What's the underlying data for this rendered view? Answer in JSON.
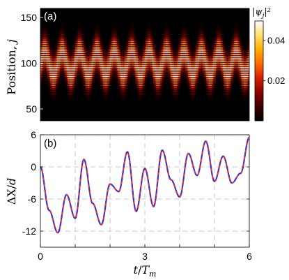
{
  "chart_data": [
    {
      "type": "heatmap",
      "panel_label": "(a)",
      "xlabel": "",
      "ylabel": "Position, j",
      "ylabel_text": "Position,",
      "ylabel_var": "j",
      "x_range": [
        0,
        6
      ],
      "y_range": [
        37,
        160
      ],
      "y_ticks": [
        "50",
        "100",
        "150"
      ],
      "y_tick_values": [
        50,
        100,
        150
      ],
      "colorbar": {
        "label": "|ψj|²",
        "label_text": "|ψ",
        "label_sub": "j",
        "label_tail": "|²",
        "ticks": [
          "0.02",
          "0.04"
        ],
        "tick_values": [
          0.02,
          0.04
        ],
        "range": [
          0,
          0.05
        ],
        "colormap": [
          "#000000",
          "#3a0000",
          "#8b0000",
          "#d42000",
          "#ff6a00",
          "#ffb000",
          "#ffe070",
          "#ffffff"
        ]
      },
      "packet": {
        "center_start": 100,
        "center_drift_per_Tm": 0,
        "oscillation_amplitude": 12,
        "oscillations_in_window": 12,
        "width": 17,
        "peak_value": 0.05
      }
    },
    {
      "type": "line",
      "panel_label": "(b)",
      "xlabel": "t/Tm",
      "xlabel_main": "t",
      "xlabel_den": "T",
      "xlabel_sub": "m",
      "ylabel": "ΔX/d",
      "ylabel_main": "ΔX",
      "ylabel_den": "d",
      "x_range": [
        0,
        6
      ],
      "y_range": [
        -15,
        6
      ],
      "x_ticks": [
        "0",
        "3",
        "6"
      ],
      "x_tick_values": [
        0,
        3,
        6
      ],
      "y_ticks": [
        "6",
        "0",
        "-6",
        "-12"
      ],
      "y_tick_values": [
        6,
        0,
        -6,
        -12
      ],
      "grid": true,
      "series": [
        {
          "name": "",
          "color": "#e8312a",
          "dash": "none"
        },
        {
          "name": "",
          "color": "#2b3be0",
          "dash": "dash"
        }
      ],
      "x": [
        0,
        0.25,
        0.5,
        0.75,
        1.0,
        1.25,
        1.5,
        1.75,
        2.0,
        2.25,
        2.5,
        2.75,
        3.0,
        3.25,
        3.5,
        3.75,
        4.0,
        4.25,
        4.5,
        4.75,
        5.0,
        5.25,
        5.5,
        5.75,
        6.0
      ],
      "y": [
        0,
        -8.1,
        -12.3,
        -5.2,
        -9.6,
        1.4,
        -6.8,
        -10.8,
        -3.2,
        -4.6,
        2.8,
        -8.3,
        -0.3,
        -7.4,
        3.1,
        -2.4,
        -5.6,
        2.5,
        -1.6,
        4.8,
        -2.7,
        2.0,
        -3.0,
        -1.2,
        5.5
      ],
      "oscillation": {
        "period_Tm": 0.5,
        "amplitude": 3.6
      }
    }
  ]
}
